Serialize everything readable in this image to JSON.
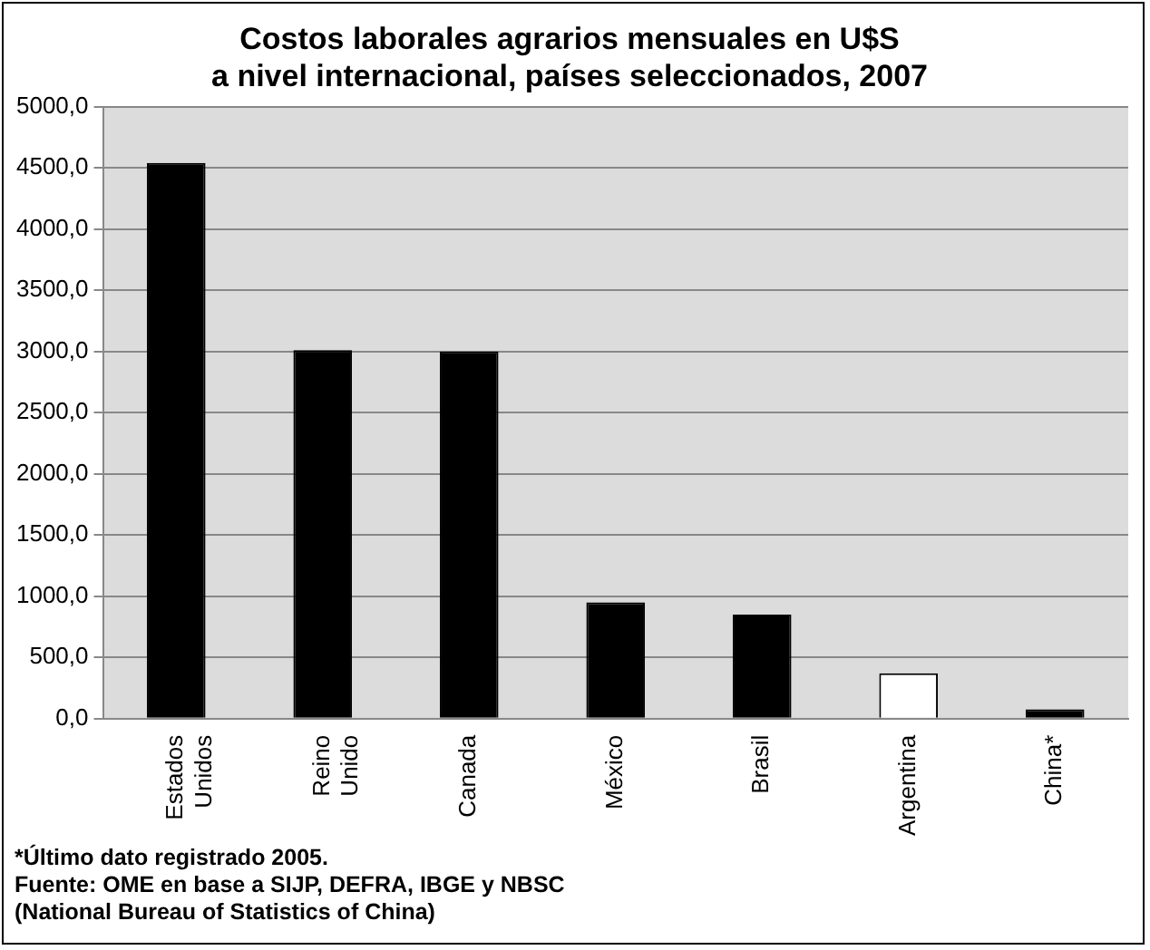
{
  "chart_data": {
    "type": "bar",
    "title": "Costos laborales agrarios mensuales en U$S\na nivel internacional, países seleccionados, 2007",
    "categories": [
      "Estados Unidos",
      "Reino Unido",
      "Canada",
      "México",
      "Brasil",
      "Argentina",
      "China*"
    ],
    "values": [
      4540,
      3010,
      3000,
      950,
      850,
      370,
      75
    ],
    "colors": [
      "#000000",
      "#000000",
      "#000000",
      "#000000",
      "#000000",
      "#ffffff",
      "#000000"
    ],
    "ylim": [
      0,
      5000
    ],
    "yticks": [
      {
        "value": 0,
        "label": "0,0"
      },
      {
        "value": 500,
        "label": "500,0"
      },
      {
        "value": 1000,
        "label": "1000,0"
      },
      {
        "value": 1500,
        "label": "1500,0"
      },
      {
        "value": 2000,
        "label": "2000,0"
      },
      {
        "value": 2500,
        "label": "2500,0"
      },
      {
        "value": 3000,
        "label": "3000,0"
      },
      {
        "value": 3500,
        "label": "3500,0"
      },
      {
        "value": 4000,
        "label": "4000,0"
      },
      {
        "value": 4500,
        "label": "4500,0"
      },
      {
        "value": 5000,
        "label": "5000,0"
      }
    ],
    "grid": "y",
    "legend": false,
    "annotations": [
      "*Último dato registrado 2005.",
      "Fuente: OME en base a SIJP, DEFRA, IBGE y NBSC",
      "(National Bureau of Statistics of China)"
    ]
  }
}
